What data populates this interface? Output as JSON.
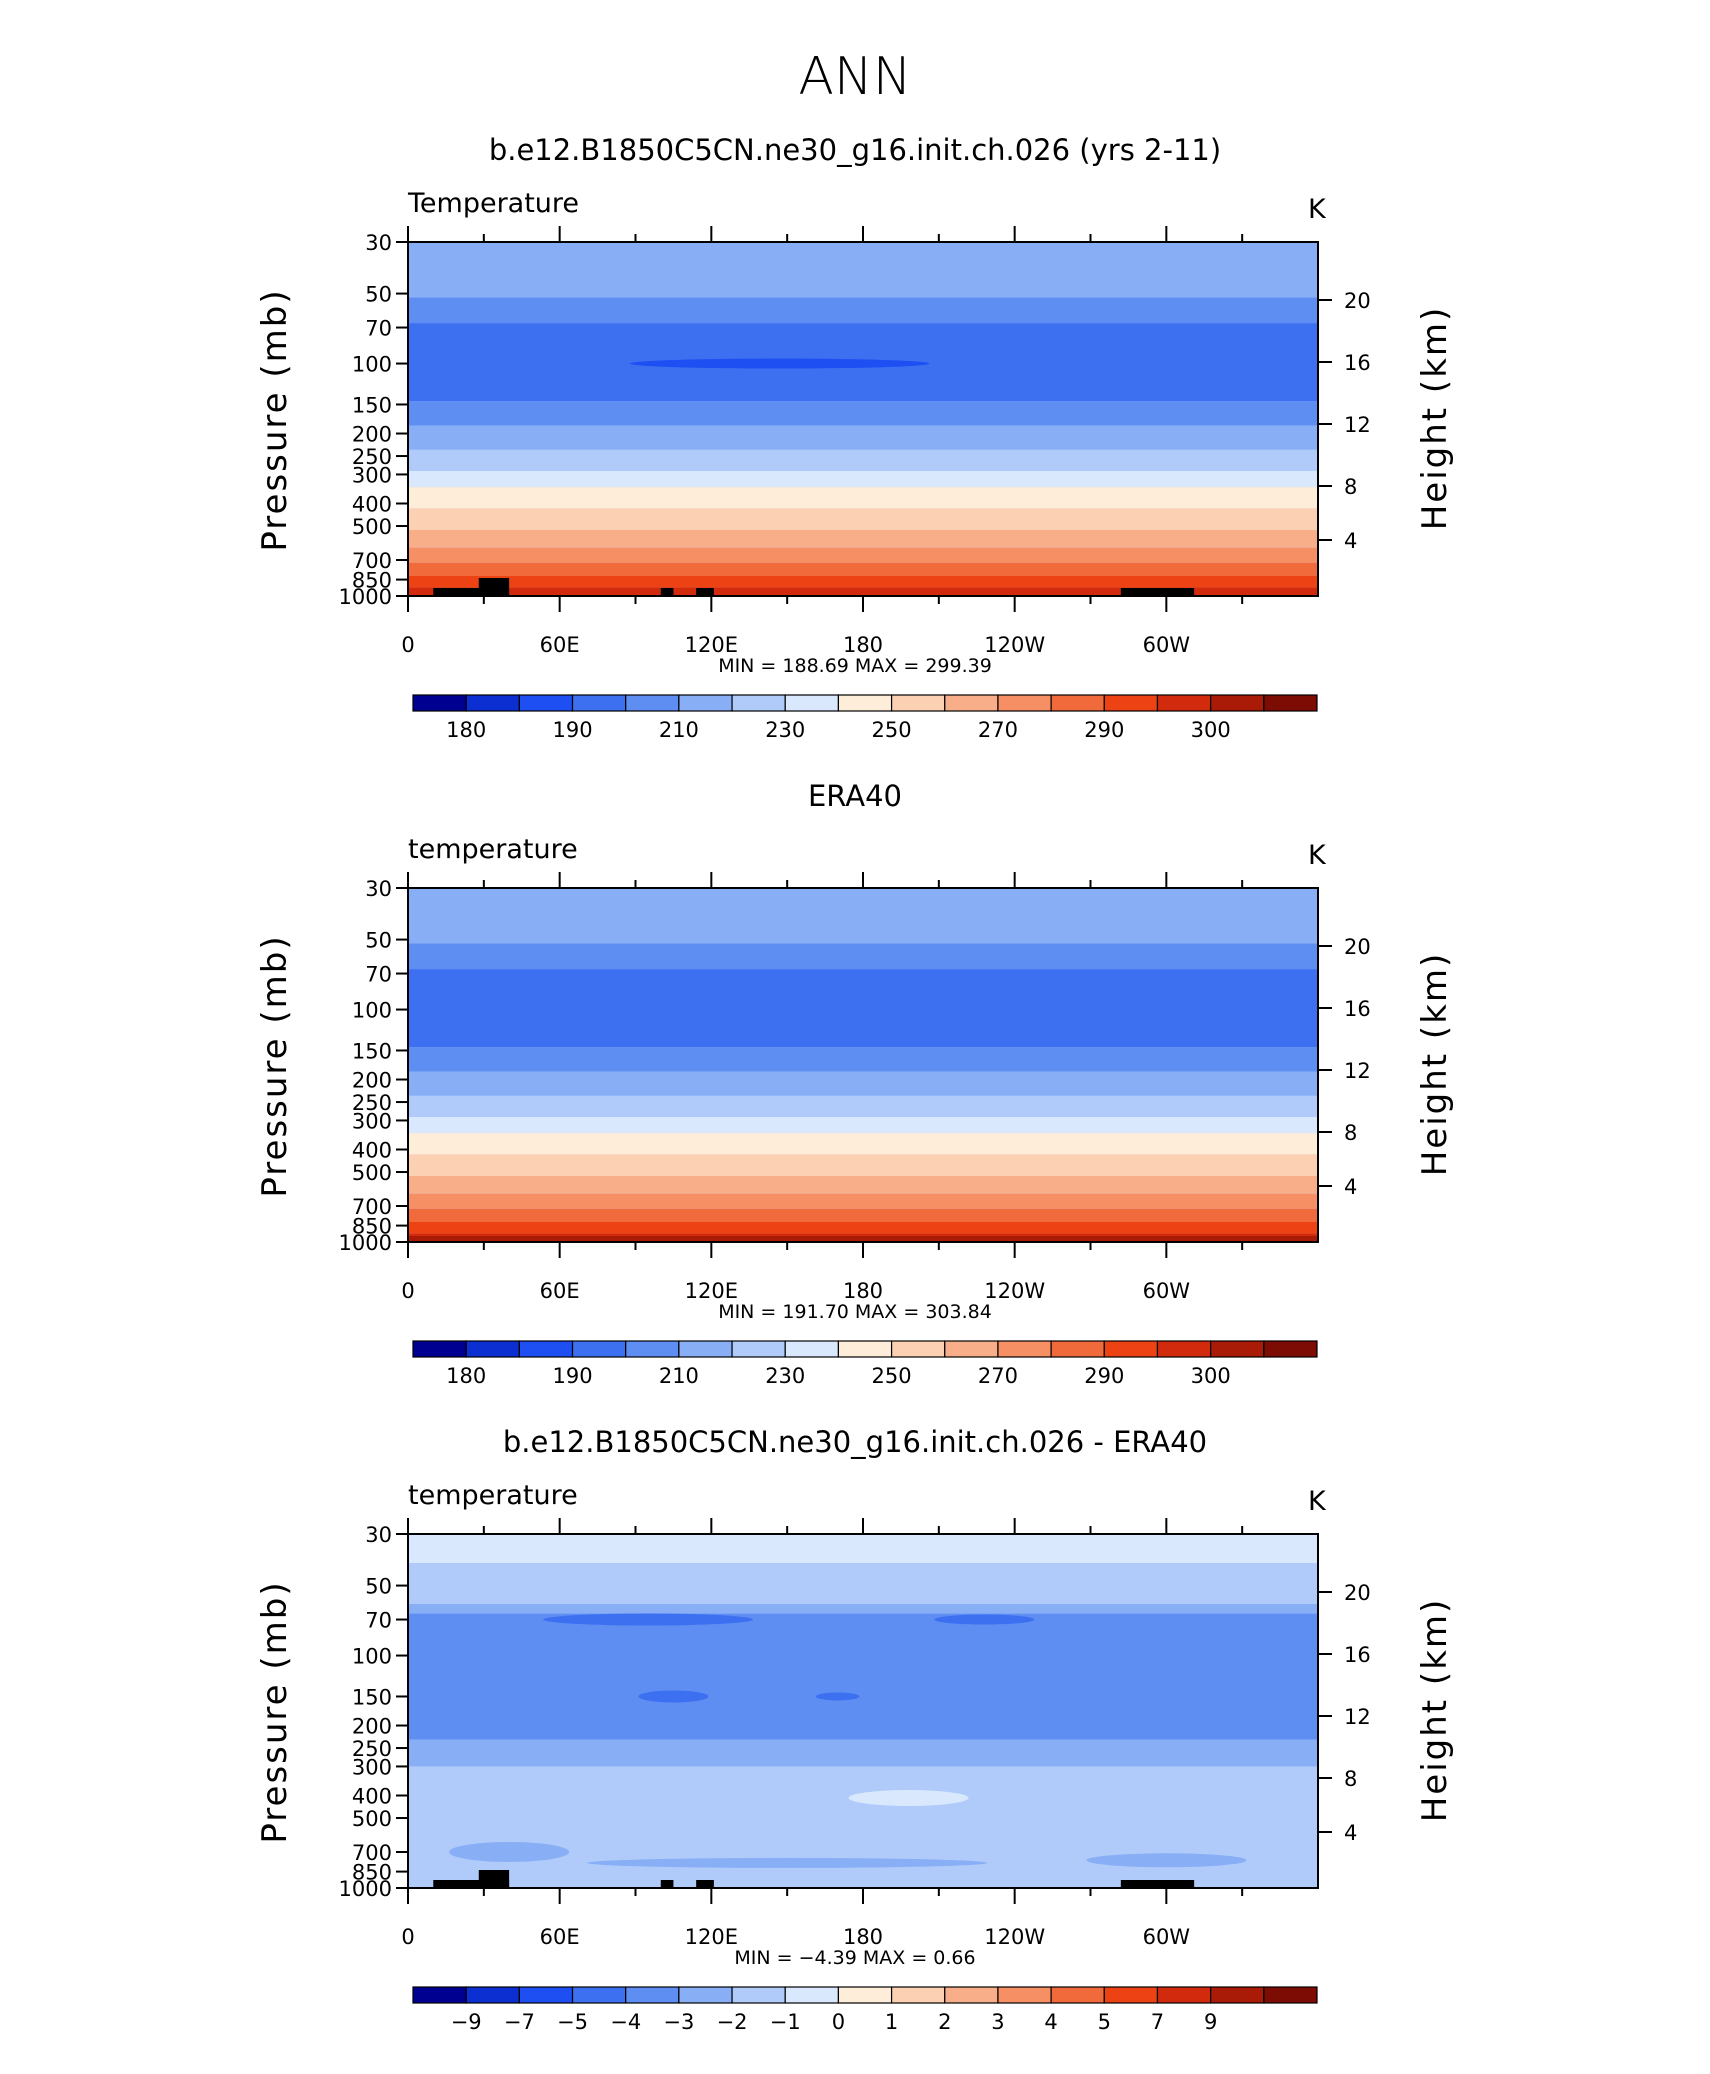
{
  "figure_title": "ANN",
  "chart_data": [
    {
      "type": "heatmap",
      "title": "b.e12.B1850C5CN.ne30_g16.init.ch.026 (yrs 2-11)",
      "left_label": "Temperature",
      "units": "K",
      "ylabel": "Pressure  (mb)",
      "ylabel_right": "Height  (km)",
      "x_tick_labels": [
        "0",
        "60E",
        "120E",
        "180",
        "120W",
        "60W"
      ],
      "y_tick_labels": [
        "30",
        "50",
        "70",
        "100",
        "150",
        "200",
        "250",
        "300",
        "400",
        "500",
        "700",
        "850",
        "1000"
      ],
      "right_tick_labels": [
        "20",
        "16",
        "12",
        "8",
        "4"
      ],
      "minmax_text": "MIN =  188.69   MAX =  299.39",
      "min": 188.69,
      "max": 299.39,
      "colorbar_labels": [
        "180",
        "190",
        "210",
        "230",
        "250",
        "270",
        "290",
        "300"
      ],
      "colorbar_colors": [
        "#000090",
        "#0b2fd0",
        "#1d4ff2",
        "#3d70f1",
        "#5f8ef3",
        "#88aef6",
        "#b0cbfa",
        "#d9e8fd",
        "#fdedd9",
        "#fbd0b3",
        "#f9ae8a",
        "#f68f64",
        "#f06a3c",
        "#ec4214",
        "#d22a0c",
        "#a91b07",
        "#7d0d04"
      ],
      "levels": [
        "near-surface: ~290-299 K (dark orange-red)",
        "500-700 mb: ~260-280 K",
        "250-300 mb: ~230-250 K",
        "70-150 mb: ~190-210 K (coldest, with a ~188 K core near 100 mb over the Pacific)",
        "30-50 mb: ~210-230 K"
      ]
    },
    {
      "type": "heatmap",
      "title": "ERA40",
      "left_label": "temperature",
      "units": "K",
      "ylabel": "Pressure  (mb)",
      "ylabel_right": "Height  (km)",
      "x_tick_labels": [
        "0",
        "60E",
        "120E",
        "180",
        "120W",
        "60W"
      ],
      "y_tick_labels": [
        "30",
        "50",
        "70",
        "100",
        "150",
        "200",
        "250",
        "300",
        "400",
        "500",
        "700",
        "850",
        "1000"
      ],
      "right_tick_labels": [
        "20",
        "16",
        "12",
        "8",
        "4"
      ],
      "minmax_text": "MIN =  191.70   MAX =  303.84",
      "min": 191.7,
      "max": 303.84,
      "colorbar_labels": [
        "180",
        "190",
        "210",
        "230",
        "250",
        "270",
        "290",
        "300"
      ],
      "colorbar_colors": [
        "#000090",
        "#0b2fd0",
        "#1d4ff2",
        "#3d70f1",
        "#5f8ef3",
        "#88aef6",
        "#b0cbfa",
        "#d9e8fd",
        "#fdedd9",
        "#fbd0b3",
        "#f9ae8a",
        "#f68f64",
        "#f06a3c",
        "#ec4214",
        "#d22a0c",
        "#a91b07",
        "#7d0d04"
      ]
    },
    {
      "type": "heatmap",
      "title": "b.e12.B1850C5CN.ne30_g16.init.ch.026 - ERA40",
      "left_label": "temperature",
      "units": "K",
      "ylabel": "Pressure  (mb)",
      "ylabel_right": "Height  (km)",
      "x_tick_labels": [
        "0",
        "60E",
        "120E",
        "180",
        "120W",
        "60W"
      ],
      "y_tick_labels": [
        "30",
        "50",
        "70",
        "100",
        "150",
        "200",
        "250",
        "300",
        "400",
        "500",
        "700",
        "850",
        "1000"
      ],
      "right_tick_labels": [
        "20",
        "16",
        "12",
        "8",
        "4"
      ],
      "minmax_text": "MIN =   −4.39   MAX =     0.66",
      "min": -4.39,
      "max": 0.66,
      "colorbar_labels": [
        "−9",
        "−7",
        "−5",
        "−4",
        "−3",
        "−2",
        "−1",
        "0",
        "1",
        "2",
        "3",
        "4",
        "5",
        "7",
        "9"
      ],
      "colorbar_colors": [
        "#000090",
        "#0b2fd0",
        "#1d4ff2",
        "#3d70f1",
        "#5f8ef3",
        "#88aef6",
        "#b0cbfa",
        "#d9e8fd",
        "#fdedd9",
        "#fbd0b3",
        "#f9ae8a",
        "#f68f64",
        "#f06a3c",
        "#ec4214",
        "#d22a0c",
        "#a91b07",
        "#7d0d04"
      ]
    }
  ]
}
